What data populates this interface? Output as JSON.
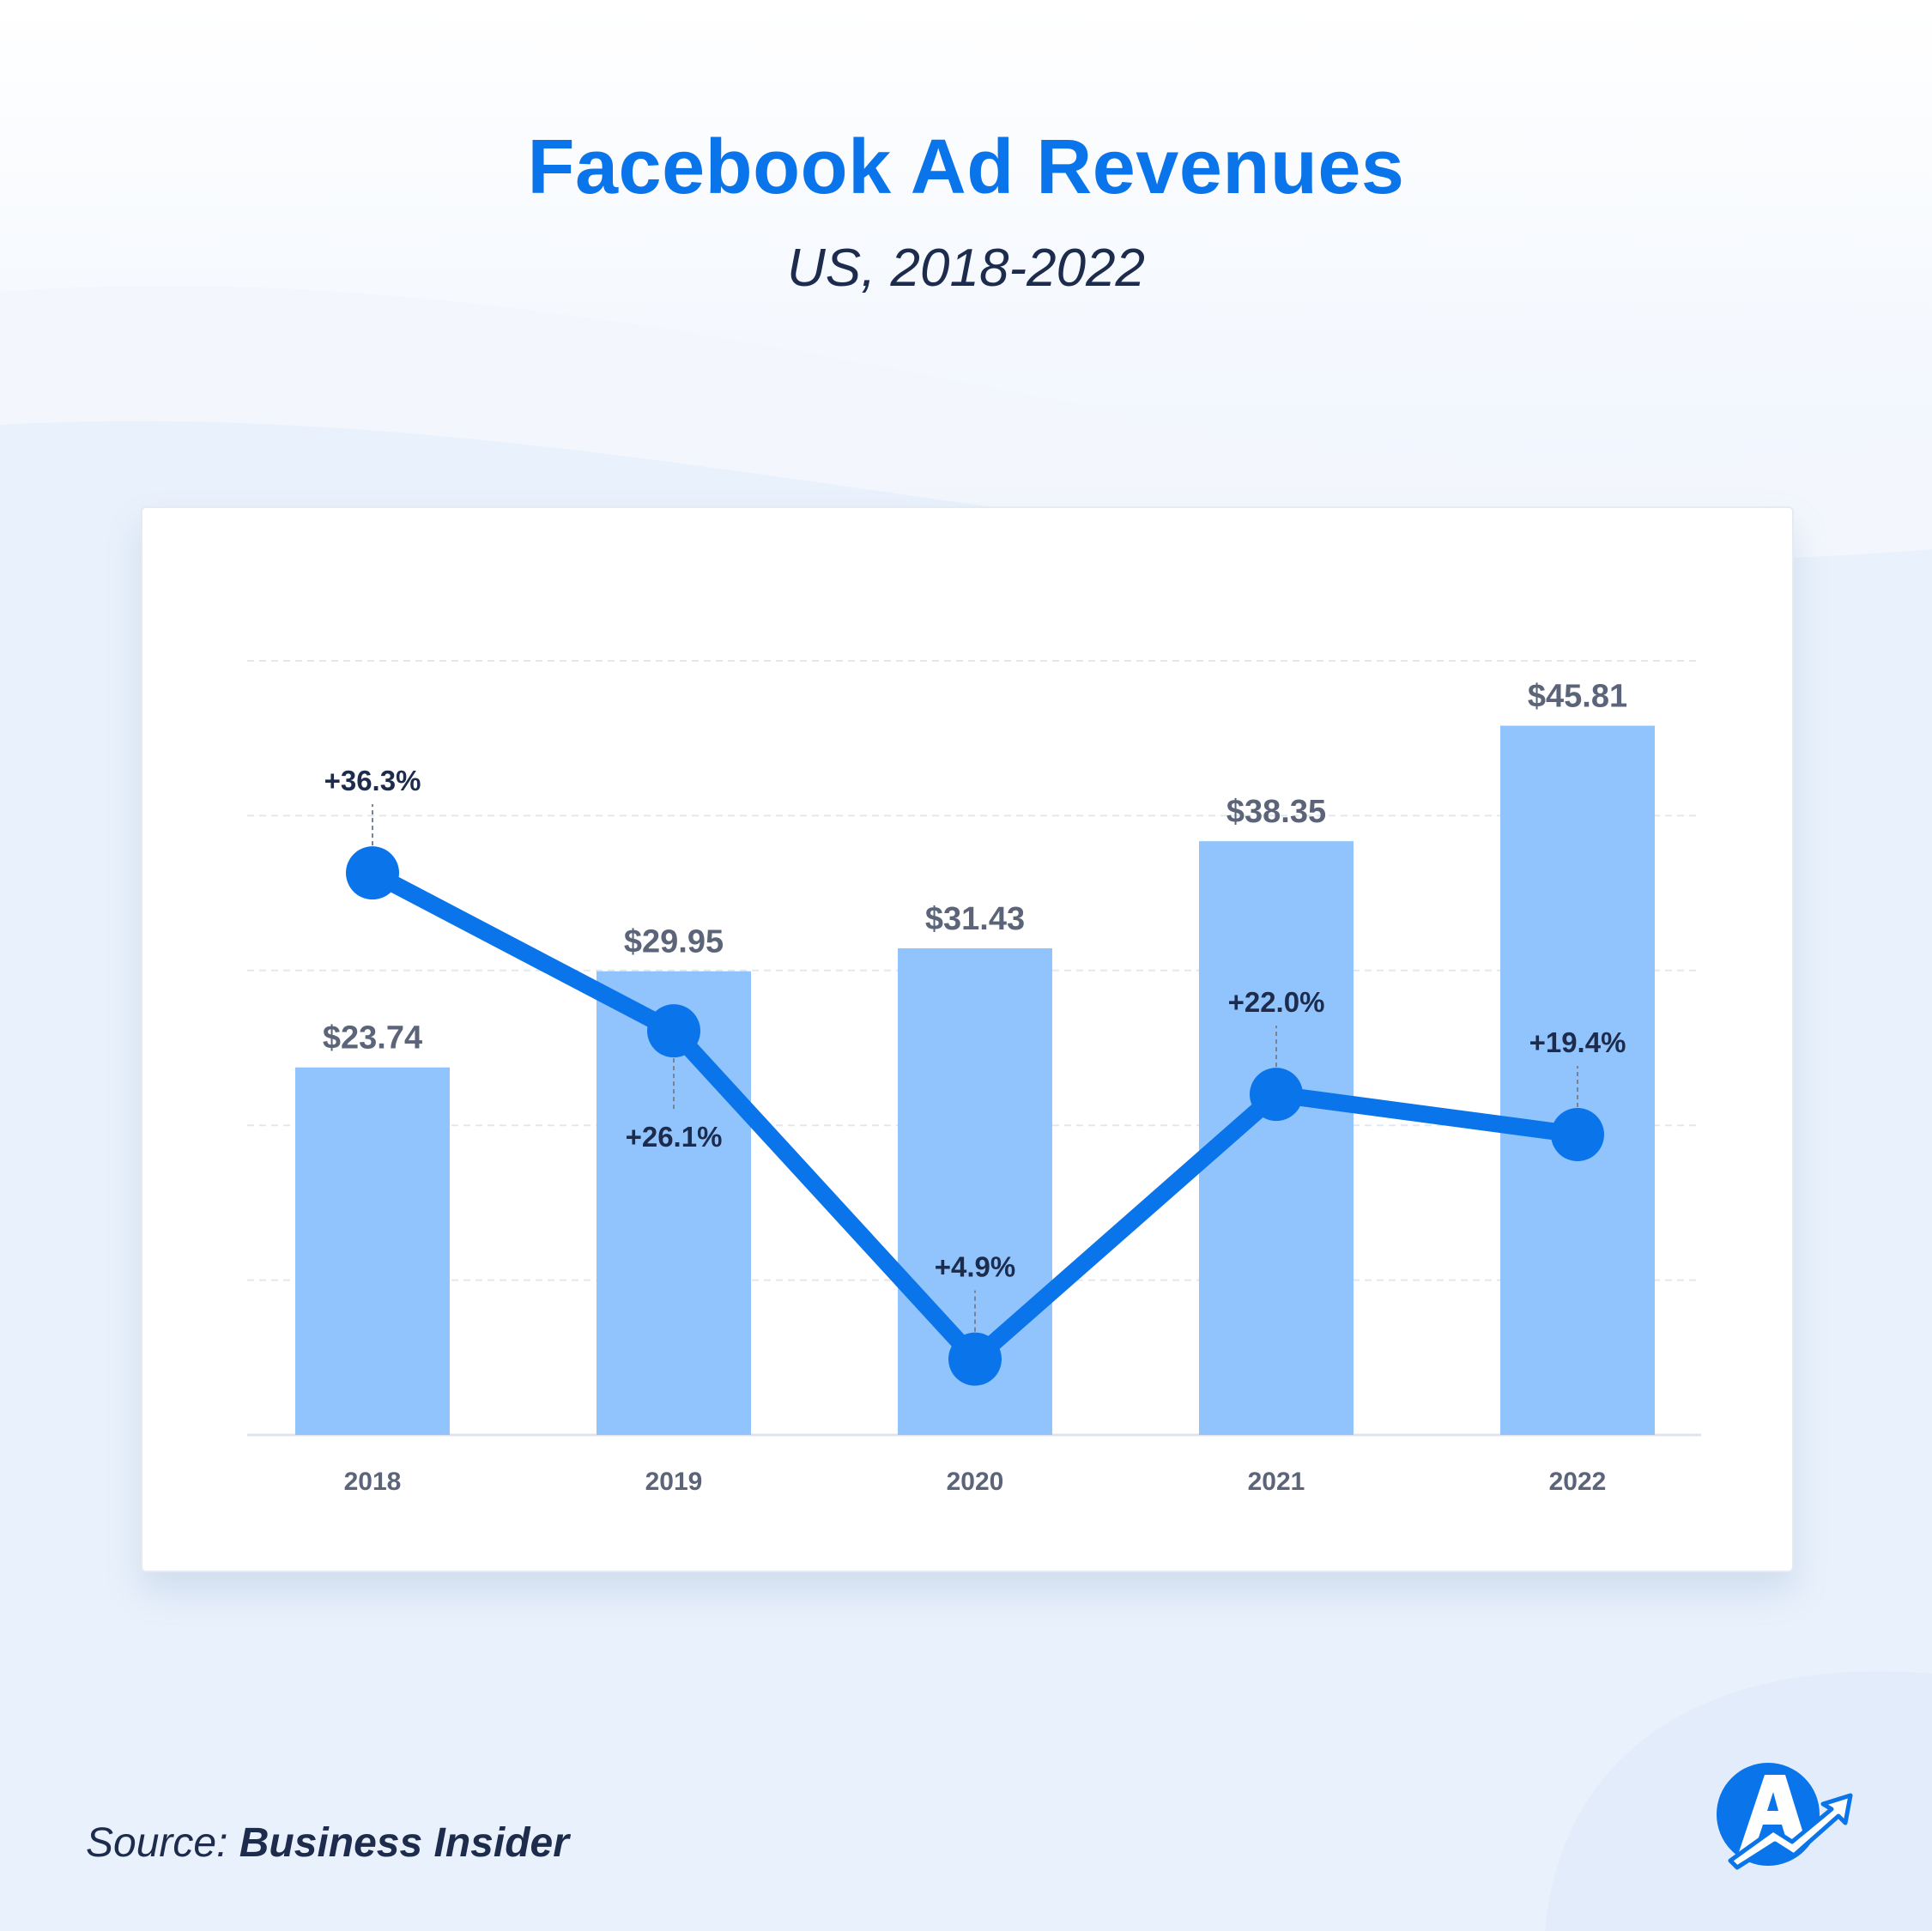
{
  "header": {
    "title": "Facebook Ad Revenues",
    "subtitle": "US, 2018-2022"
  },
  "source": {
    "prefix": "Source: ",
    "name": "Business Insider"
  },
  "logo": {
    "icon": "wordstream-a-arrow-logo-icon"
  },
  "colors": {
    "title": "#0A74EA",
    "bar": "#91C4FC",
    "line": "#0A74EA",
    "label": "#5B6478",
    "growth_label": "#1D2B4C"
  },
  "chart_data": {
    "type": "bar",
    "title": "",
    "xlabel": "",
    "ylabel": "",
    "categories": [
      "2018",
      "2019",
      "2020",
      "2021",
      "2022"
    ],
    "series": [
      {
        "type": "bar",
        "values": [
          23.74,
          29.95,
          31.43,
          38.35,
          45.81
        ],
        "data_labels": [
          "$23.74",
          "$29.95",
          "$31.43",
          "$38.35",
          "$45.81"
        ]
      },
      {
        "type": "line",
        "values": [
          36.3,
          26.1,
          4.9,
          22.0,
          19.4
        ],
        "data_labels": [
          "+36.3%",
          "+26.1%",
          "+4.9%",
          "+22.0%",
          "+19.4%"
        ]
      }
    ],
    "ylim": [
      0,
      50
    ],
    "growth_ylim": [
      0,
      50
    ],
    "grid": true,
    "legend": "none"
  }
}
